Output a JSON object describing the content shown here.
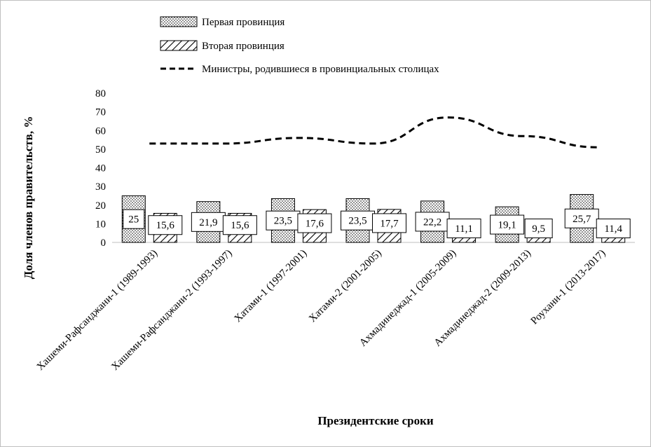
{
  "chart_data": {
    "type": "bar",
    "xlabel": "Президентские сроки",
    "ylabel": "Доля членов правительств, %",
    "ylim": [
      0,
      80
    ],
    "yticks": [
      0,
      10,
      20,
      30,
      40,
      50,
      60,
      70,
      80
    ],
    "grid": false,
    "legend_position": "top",
    "categories": [
      "Хашеми-Рафсанджани-1  (1989-1993)",
      "Хашеми-Рафсанджани-2 (1993-1997)",
      "Хатами-1  (1997-2001)",
      "Хатами-2 (2001-2005)",
      "Ахмадинеджад-1 (2005-2009)",
      "Ахмадинеджад-2 (2009-2013)",
      "Роухани-1 (2013-2017)"
    ],
    "series": [
      {
        "name": "Первая провинция",
        "kind": "bar",
        "pattern": "dots",
        "values": [
          25,
          21.9,
          23.5,
          23.5,
          22.2,
          19.1,
          25.7
        ],
        "labels": [
          "25",
          "21,9",
          "23,5",
          "23,5",
          "22,2",
          "19,1",
          "25,7"
        ]
      },
      {
        "name": "Вторая провинция",
        "kind": "bar",
        "pattern": "diagonal-hatch",
        "values": [
          15.6,
          15.6,
          17.6,
          17.7,
          11.1,
          9.5,
          11.4
        ],
        "labels": [
          "15,6",
          "15,6",
          "17,6",
          "17,7",
          "11,1",
          "9,5",
          "11,4"
        ]
      },
      {
        "name": "Министры, родившиеся в провинциальных столицах",
        "kind": "line",
        "style": "dashed",
        "values": [
          53,
          53,
          56,
          53,
          67,
          57,
          51
        ]
      }
    ],
    "colors": {
      "ink": "#000000",
      "axis": "#bfbfbf",
      "background": "#ffffff"
    }
  }
}
